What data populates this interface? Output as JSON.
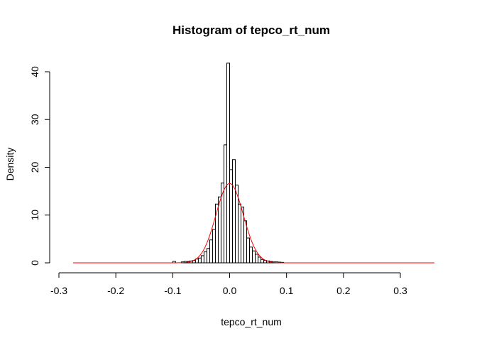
{
  "chart_data": {
    "type": "bar",
    "title": "Histogram of tepco_rt_num",
    "xlabel": "tepco_rt_num",
    "ylabel": "Density",
    "xlim": [
      -0.3,
      0.3
    ],
    "ylim": [
      0,
      40
    ],
    "x_ticks": [
      "-0.3",
      "-0.2",
      "-0.1",
      "0.0",
      "0.1",
      "0.2",
      "0.3"
    ],
    "y_ticks": [
      "0",
      "10",
      "20",
      "30",
      "40"
    ],
    "bin_width": 0.005,
    "bins": [
      {
        "x0": -0.1,
        "x1": -0.095,
        "value": 0.3
      },
      {
        "x0": -0.085,
        "x1": -0.08,
        "value": 0.2
      },
      {
        "x0": -0.08,
        "x1": -0.075,
        "value": 0.3
      },
      {
        "x0": -0.075,
        "x1": -0.07,
        "value": 0.3
      },
      {
        "x0": -0.07,
        "x1": -0.065,
        "value": 0.4
      },
      {
        "x0": -0.065,
        "x1": -0.06,
        "value": 0.5
      },
      {
        "x0": -0.06,
        "x1": -0.055,
        "value": 0.8
      },
      {
        "x0": -0.055,
        "x1": -0.05,
        "value": 1.0
      },
      {
        "x0": -0.05,
        "x1": -0.045,
        "value": 1.5
      },
      {
        "x0": -0.045,
        "x1": -0.04,
        "value": 2.3
      },
      {
        "x0": -0.04,
        "x1": -0.035,
        "value": 3.0
      },
      {
        "x0": -0.035,
        "x1": -0.03,
        "value": 4.8
      },
      {
        "x0": -0.03,
        "x1": -0.025,
        "value": 7.0
      },
      {
        "x0": -0.025,
        "x1": -0.02,
        "value": 12.3
      },
      {
        "x0": -0.02,
        "x1": -0.015,
        "value": 13.8
      },
      {
        "x0": -0.015,
        "x1": -0.01,
        "value": 16.7
      },
      {
        "x0": -0.01,
        "x1": -0.005,
        "value": 24.7
      },
      {
        "x0": -0.005,
        "x1": 0.0,
        "value": 41.8
      },
      {
        "x0": 0.0,
        "x1": 0.005,
        "value": 19.5
      },
      {
        "x0": 0.005,
        "x1": 0.01,
        "value": 21.6
      },
      {
        "x0": 0.01,
        "x1": 0.015,
        "value": 16.3
      },
      {
        "x0": 0.015,
        "x1": 0.02,
        "value": 12.3
      },
      {
        "x0": 0.02,
        "x1": 0.025,
        "value": 11.7
      },
      {
        "x0": 0.025,
        "x1": 0.03,
        "value": 8.8
      },
      {
        "x0": 0.03,
        "x1": 0.035,
        "value": 5.2
      },
      {
        "x0": 0.035,
        "x1": 0.04,
        "value": 3.3
      },
      {
        "x0": 0.04,
        "x1": 0.045,
        "value": 2.5
      },
      {
        "x0": 0.045,
        "x1": 0.05,
        "value": 1.8
      },
      {
        "x0": 0.05,
        "x1": 0.055,
        "value": 1.2
      },
      {
        "x0": 0.055,
        "x1": 0.06,
        "value": 0.7
      },
      {
        "x0": 0.06,
        "x1": 0.065,
        "value": 0.5
      },
      {
        "x0": 0.065,
        "x1": 0.07,
        "value": 0.4
      },
      {
        "x0": 0.07,
        "x1": 0.075,
        "value": 0.3
      },
      {
        "x0": 0.075,
        "x1": 0.08,
        "value": 0.2
      },
      {
        "x0": 0.08,
        "x1": 0.085,
        "value": 0.2
      },
      {
        "x0": 0.085,
        "x1": 0.09,
        "value": 0.15
      },
      {
        "x0": 0.09,
        "x1": 0.095,
        "value": 0.1
      }
    ],
    "density_curve": {
      "type": "normal",
      "mean": 0.0,
      "sd": 0.024,
      "x_range": [
        -0.275,
        0.36
      ],
      "color": "#ff0000"
    },
    "bar_fill": "#ffffff",
    "bar_stroke": "#000000",
    "grid": false
  }
}
